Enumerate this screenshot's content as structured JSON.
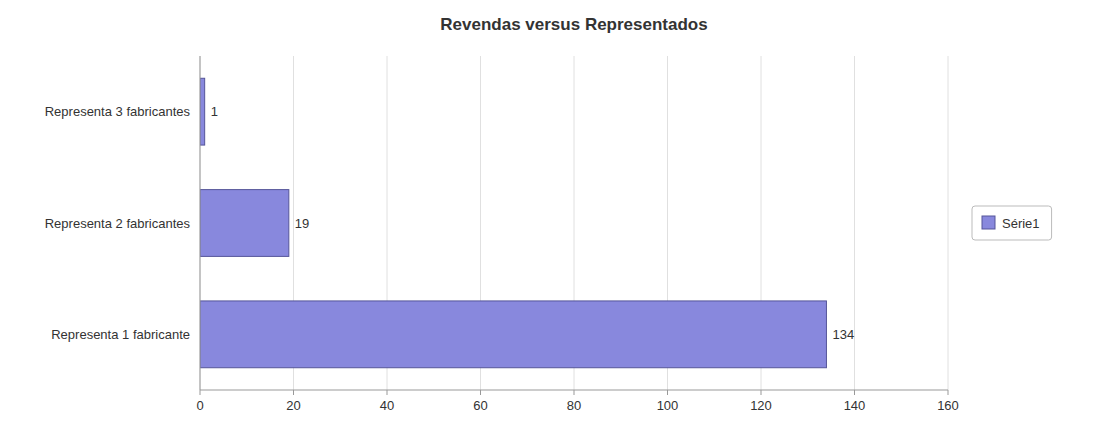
{
  "chart_data": {
    "type": "bar",
    "orientation": "horizontal",
    "title": "Revendas versus Representados",
    "categories": [
      "Representa 1 fabricante",
      "Representa 2 fabricantes",
      "Representa 3 fabricantes"
    ],
    "series": [
      {
        "name": "Série1",
        "color": "#8888dd",
        "values": [
          134,
          19,
          1
        ]
      }
    ],
    "xlim": [
      0,
      160
    ],
    "xticks": [
      0,
      20,
      40,
      60,
      80,
      100,
      120,
      140,
      160
    ],
    "grid": true,
    "legend": "right",
    "data_labels": true
  }
}
